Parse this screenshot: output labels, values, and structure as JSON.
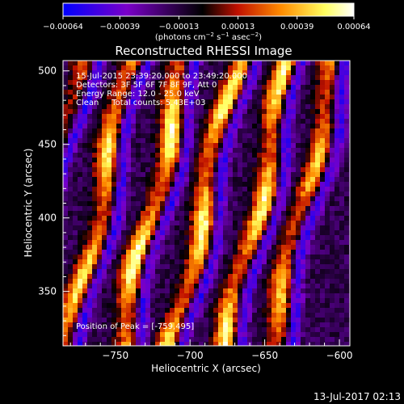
{
  "chart_data": {
    "type": "heatmap",
    "title": "Reconstructed RHESSI Image",
    "xlabel": "Heliocentric X (arcsec)",
    "ylabel": "Heliocentric Y (arcsec)",
    "xlim": [
      -785,
      -593
    ],
    "ylim": [
      313,
      507
    ],
    "x_ticks": [
      -750,
      -700,
      -650,
      -600
    ],
    "y_ticks": [
      350,
      400,
      450,
      500
    ],
    "x_tick_labels": [
      "−750",
      "−700",
      "−650",
      "−600"
    ],
    "y_tick_labels": [
      "350",
      "400",
      "450",
      "500"
    ],
    "colorbar": {
      "range": [
        -0.00064,
        0.00064
      ],
      "ticks": [
        -0.00064,
        -0.00039,
        -0.00013,
        0.00013,
        0.00039,
        0.00064
      ],
      "tick_labels": [
        "−0.00064",
        "−0.00039",
        "−0.00013",
        "0.00013",
        "0.00039",
        "0.00064"
      ],
      "unit_label_parts": [
        "(photons cm",
        "−2",
        " s",
        "−1",
        " asec",
        "−2",
        ")"
      ],
      "colors": [
        "#0000ff",
        "#7a00c8",
        "#000000",
        "#c01000",
        "#ff8c00",
        "#ffff60",
        "#ffffff"
      ]
    },
    "info_lines": [
      "15-Jul-2015 23:39:20.000 to 23:49:20.000",
      "Detectors: 3F 5F 6F 7F 8F 9F, Att 0",
      "Energy Range: 12.0 - 25.0 keV",
      "Clean     Total counts: 5.43E+03"
    ],
    "peak_label": "Position of Peak = [-759,495]",
    "ridges": [
      {
        "x_at_top": -775,
        "slope": 0.22,
        "amp": 0.55
      },
      {
        "x_at_top": -739,
        "slope": 0.22,
        "amp": 0.85
      },
      {
        "x_at_top": -703,
        "slope": 0.22,
        "amp": 0.95
      },
      {
        "x_at_top": -669,
        "slope": 0.22,
        "amp": 0.9
      },
      {
        "x_at_top": -633,
        "slope": 0.22,
        "amp": 0.9
      },
      {
        "x_at_top": -603,
        "slope": 0.22,
        "amp": 0.75
      }
    ]
  },
  "footer": {
    "timestamp": "13-Jul-2017 02:13"
  }
}
